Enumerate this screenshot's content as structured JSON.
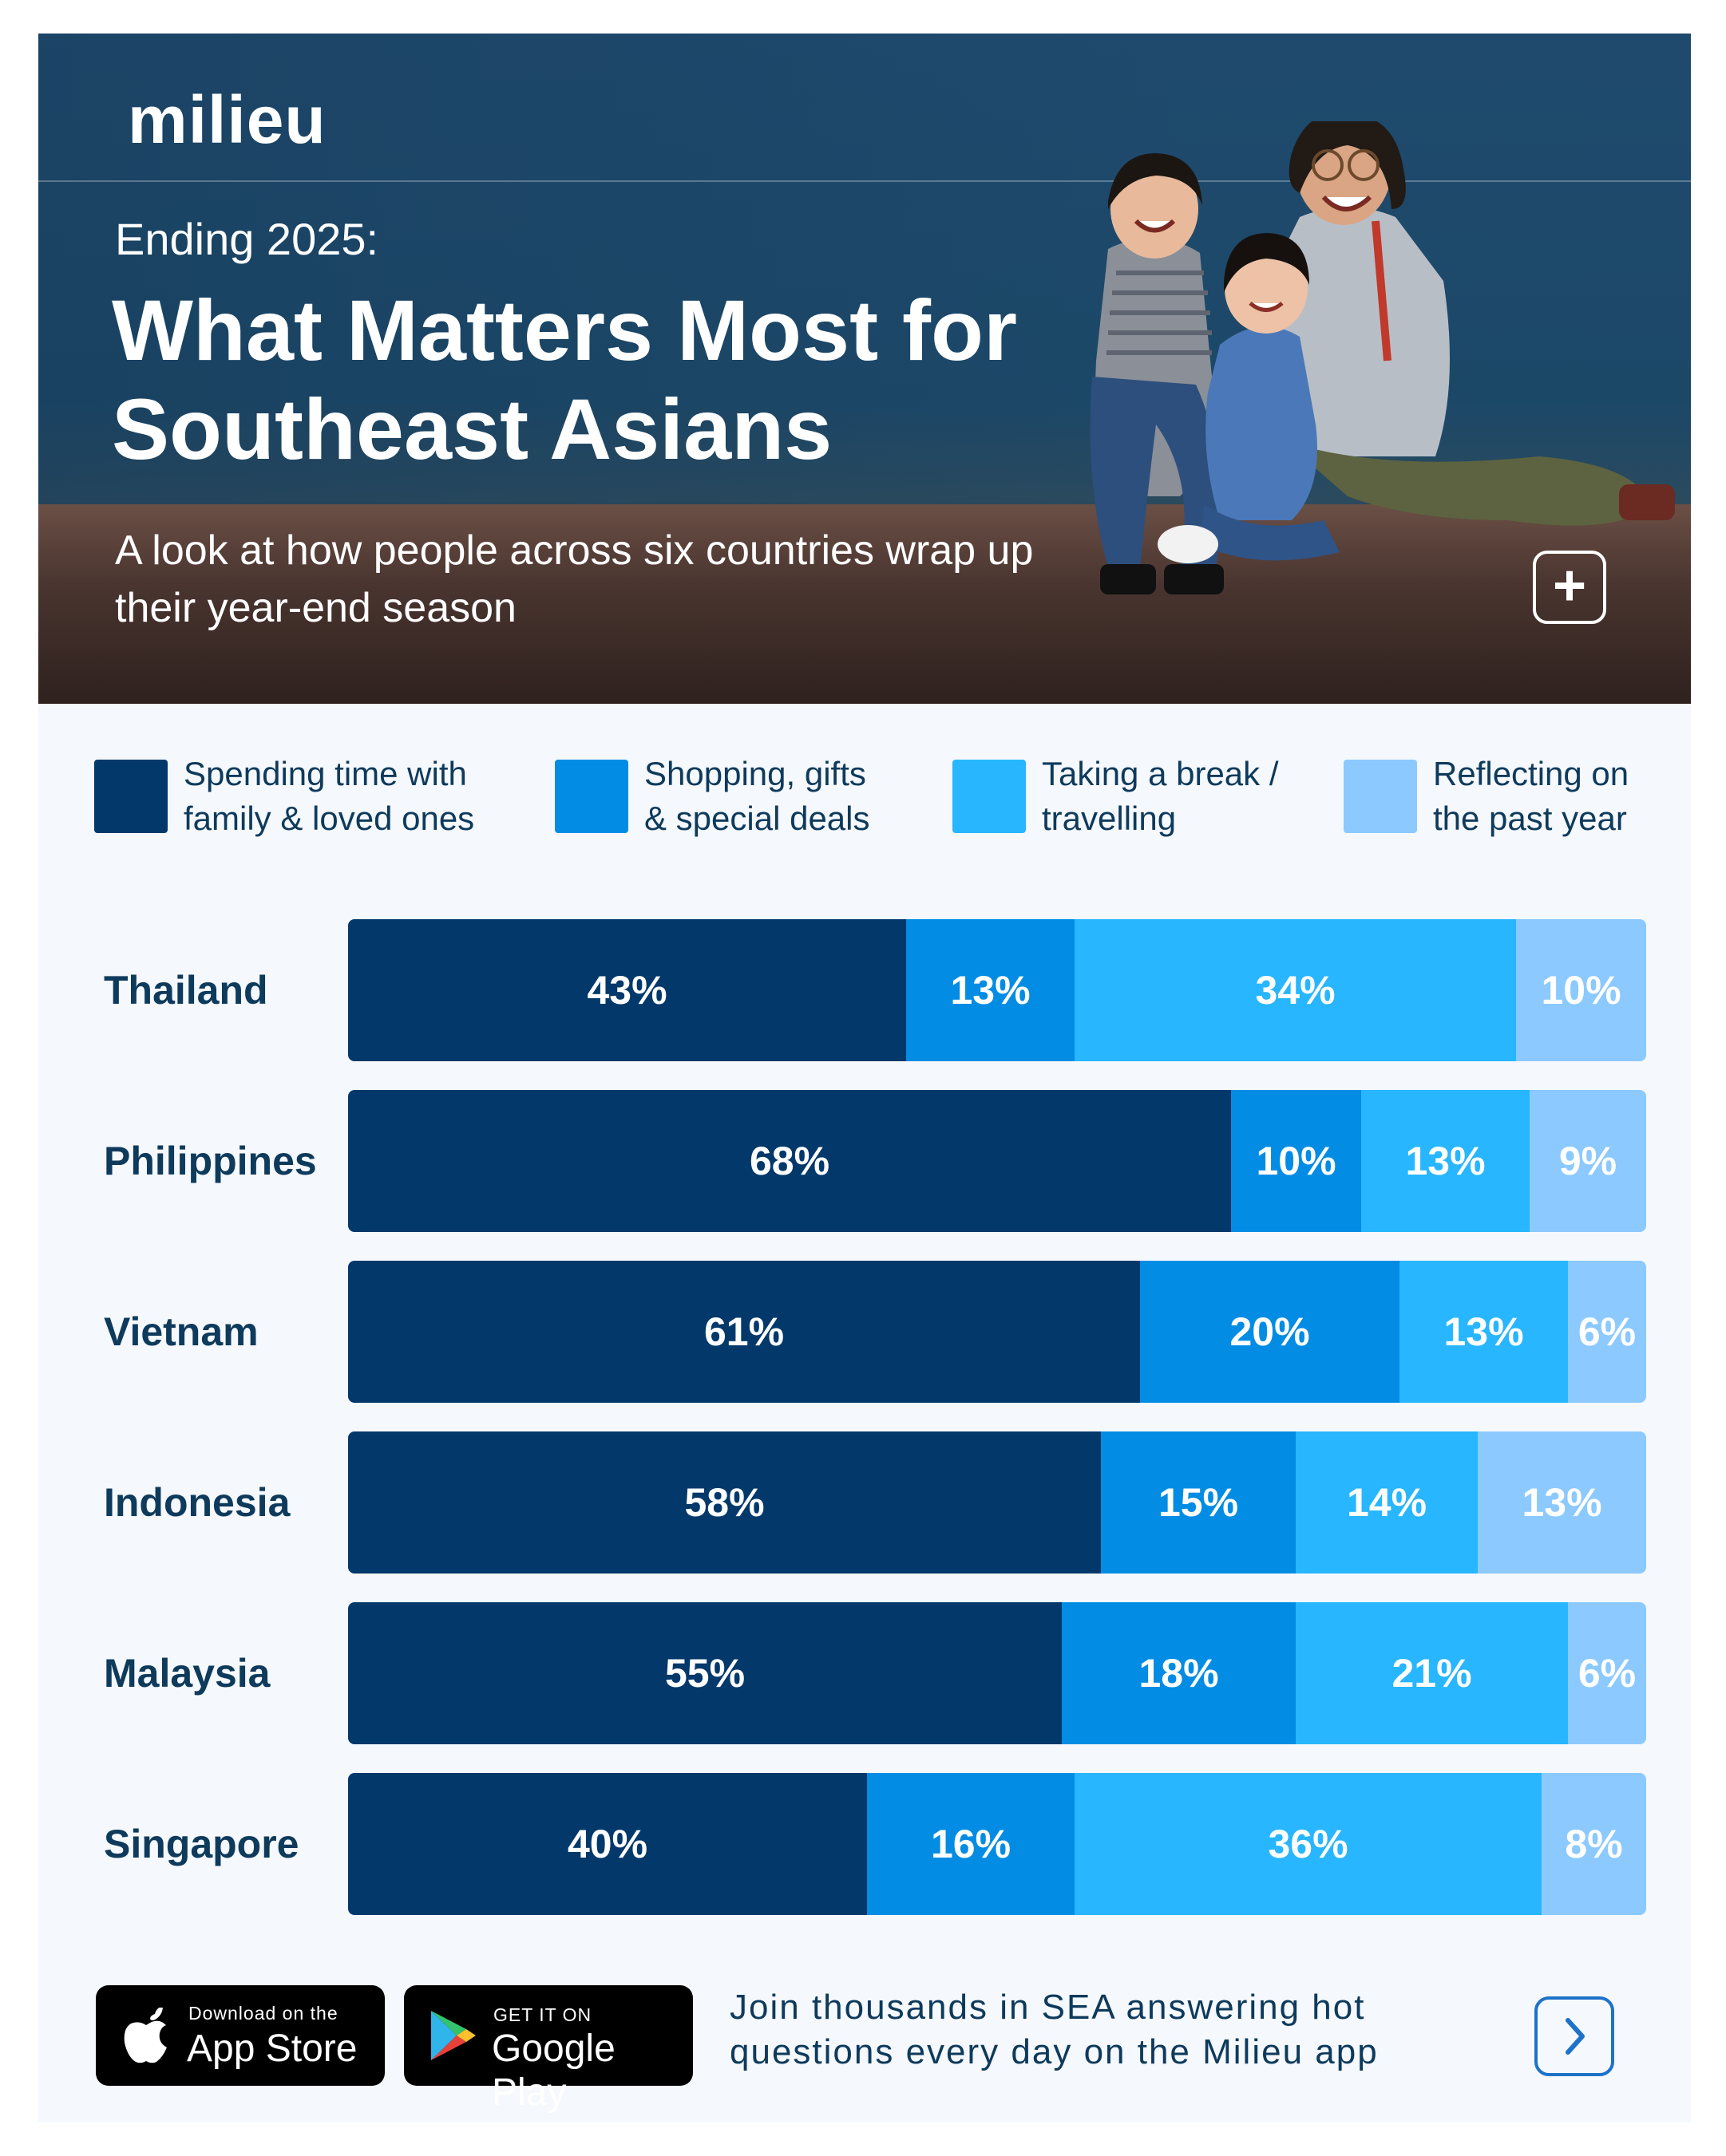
{
  "brand": {
    "logo_text": "milieu"
  },
  "header": {
    "kicker": "Ending 2025:",
    "title": "What Matters Most for Southeast Asians",
    "subtitle": "A look at how people across six countries wrap up their year-end season"
  },
  "colors": {
    "family": "#03386b",
    "shopping": "#038ce4",
    "break": "#27b6ff",
    "reflecting": "#8cc9ff",
    "text_dark": "#0e3a5c",
    "accent": "#1e72c9"
  },
  "legend": [
    {
      "label": "Spending time with\nfamily & loved ones",
      "color": "#03386b"
    },
    {
      "label": "Shopping, gifts\n& special deals",
      "color": "#038ce4"
    },
    {
      "label": "Taking a break /\ntravelling",
      "color": "#27b6ff"
    },
    {
      "label": "Reflecting on\nthe past year",
      "color": "#8cc9ff"
    }
  ],
  "chart_data": {
    "type": "bar",
    "orientation": "horizontal",
    "stacked": true,
    "categories": [
      "Thailand",
      "Philippines",
      "Vietnam",
      "Indonesia",
      "Malaysia",
      "Singapore"
    ],
    "series": [
      {
        "name": "Spending time with family & loved ones",
        "values": [
          43,
          68,
          61,
          58,
          55,
          40
        ]
      },
      {
        "name": "Shopping, gifts & special deals",
        "values": [
          13,
          10,
          20,
          15,
          18,
          16
        ]
      },
      {
        "name": "Taking a break / travelling",
        "values": [
          34,
          13,
          13,
          14,
          21,
          36
        ]
      },
      {
        "name": "Reflecting on the past year",
        "values": [
          10,
          9,
          6,
          13,
          6,
          8
        ]
      }
    ],
    "value_suffix": "%",
    "legend_position": "top"
  },
  "footer": {
    "app_store": {
      "small": "Download on the",
      "big": "App Store"
    },
    "google_play": {
      "small": "GET IT ON",
      "big": "Google Play"
    },
    "cta": "Join thousands in SEA answering hot questions every day on the Milieu app",
    "next_icon": "chevron-right-icon",
    "plus_icon": "plus-icon"
  }
}
